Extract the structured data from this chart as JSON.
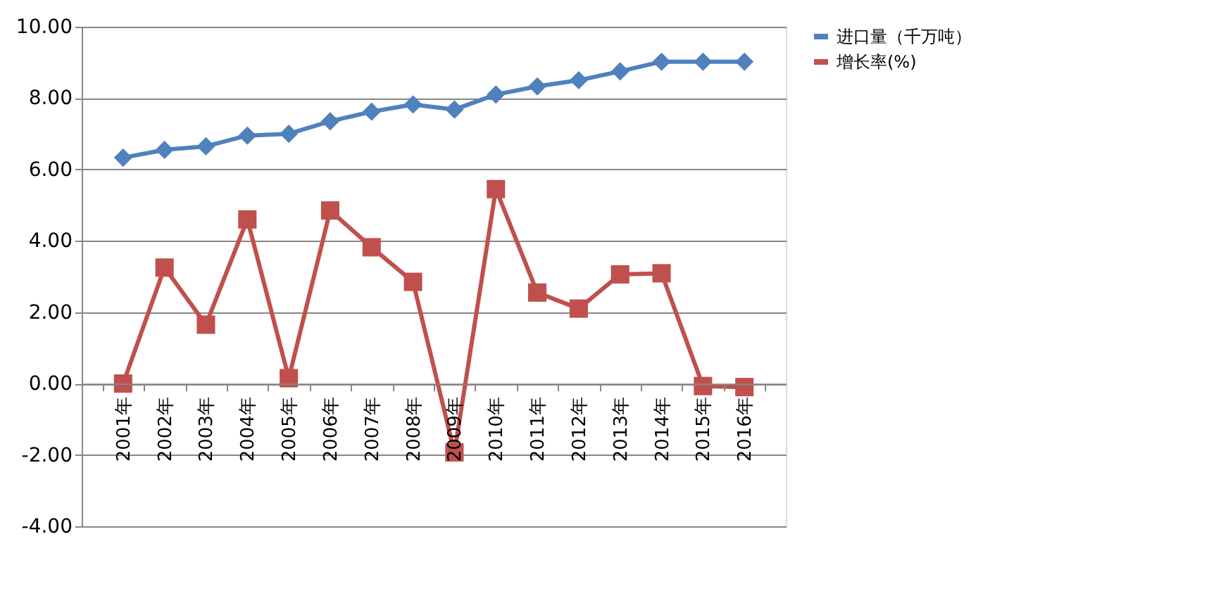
{
  "chart_data": {
    "type": "line",
    "categories": [
      "2001年",
      "2002年",
      "2003年",
      "2004年",
      "2005年",
      "2006年",
      "2007年",
      "2008年",
      "2009年",
      "2010年",
      "2011年",
      "2012年",
      "2013年",
      "2014年",
      "2015年",
      "2016年"
    ],
    "series": [
      {
        "name": "进口量（千万吨）",
        "color": "#4f81bd",
        "marker": "diamond",
        "values": [
          6.33,
          6.55,
          6.65,
          6.95,
          7.0,
          7.35,
          7.62,
          7.82,
          7.68,
          8.1,
          8.33,
          8.5,
          8.75,
          9.02,
          9.02,
          9.02
        ]
      },
      {
        "name": "增长率(%)",
        "color": "#c0504d",
        "marker": "square",
        "values": [
          0.0,
          3.25,
          1.65,
          4.6,
          0.15,
          4.85,
          3.82,
          2.85,
          -1.93,
          5.45,
          2.55,
          2.1,
          3.06,
          3.09,
          -0.07,
          -0.1
        ]
      }
    ],
    "ylim": [
      -4,
      10
    ],
    "yticks": [
      {
        "value": -4,
        "label": "-4.00"
      },
      {
        "value": -2,
        "label": "-2.00"
      },
      {
        "value": 0,
        "label": "0.00"
      },
      {
        "value": 2,
        "label": "2.00"
      },
      {
        "value": 4,
        "label": "4.00"
      },
      {
        "value": 6,
        "label": "6.00"
      },
      {
        "value": 8,
        "label": "8.00"
      },
      {
        "value": 10,
        "label": "10.00"
      }
    ],
    "grid": "y",
    "legend": "right",
    "line_style": "solid"
  }
}
